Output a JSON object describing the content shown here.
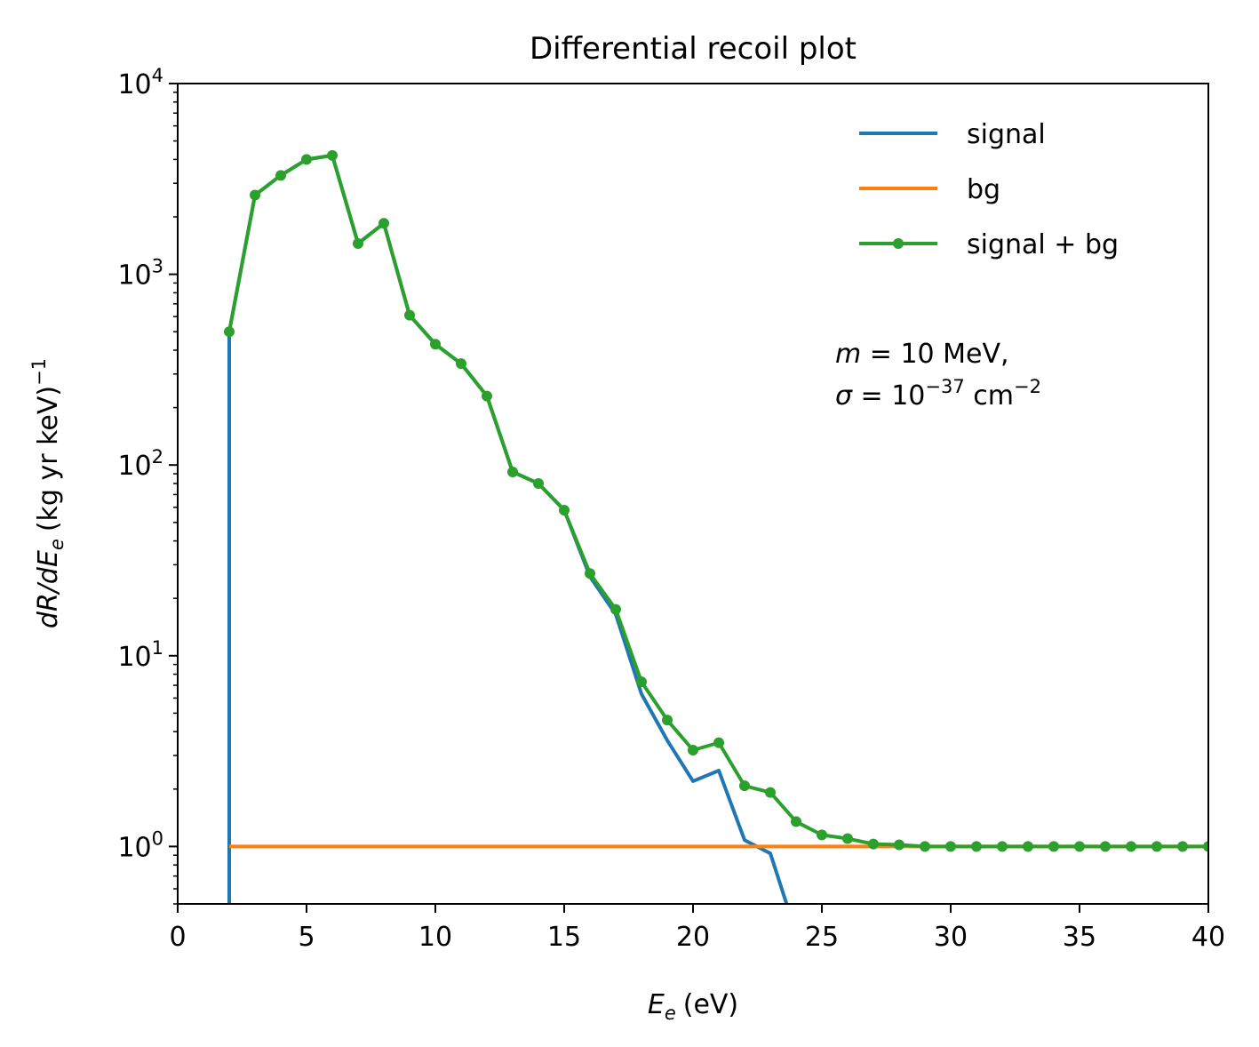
{
  "chart_data": {
    "type": "line",
    "title": "Differential recoil plot",
    "xlabel_var": "E",
    "xlabel_sub": "e",
    "xlabel_unit": "(eV)",
    "ylabel_prefix": "dR/dE",
    "ylabel_sub": "e",
    "ylabel_unit": "(kg yr keV)",
    "ylabel_exp": "−1",
    "xlim": [
      0,
      40
    ],
    "ylim": [
      0.5,
      10000
    ],
    "yscale": "log",
    "xticks": [
      0,
      5,
      10,
      15,
      20,
      25,
      30,
      35,
      40
    ],
    "yticks": [
      {
        "value": 1,
        "base": "10",
        "exp": "0"
      },
      {
        "value": 10,
        "base": "10",
        "exp": "1"
      },
      {
        "value": 100,
        "base": "10",
        "exp": "2"
      },
      {
        "value": 1000,
        "base": "10",
        "exp": "3"
      },
      {
        "value": 10000,
        "base": "10",
        "exp": "4"
      }
    ],
    "legend_position": "top-right",
    "annotation": {
      "line1_var": "m",
      "line1_text": " = 10 MeV,",
      "line2_var": "σ",
      "line2_text": " = 10",
      "line2_exp": "−37",
      "line2_unit": " cm",
      "line2_unit_exp": "−2"
    },
    "series": [
      {
        "name": "signal",
        "color": "#1f77b4",
        "markers": false,
        "x": [
          2,
          2,
          3,
          4,
          5,
          6,
          7,
          8,
          9,
          10,
          11,
          12,
          13,
          14,
          15,
          16,
          17,
          18,
          19,
          20,
          21,
          22,
          23,
          24
        ],
        "y": [
          0.3,
          500,
          2600,
          3300,
          4000,
          4200,
          1450,
          1850,
          610,
          430,
          340,
          230,
          92,
          80,
          58,
          26,
          16.5,
          6.3,
          3.6,
          2.2,
          2.5,
          1.08,
          0.92,
          0.35
        ]
      },
      {
        "name": "bg",
        "color": "#ff7f0e",
        "markers": false,
        "x": [
          2,
          40
        ],
        "y": [
          1,
          1
        ]
      },
      {
        "name": "signal + bg",
        "color": "#2ca02c",
        "markers": true,
        "x": [
          2,
          3,
          4,
          5,
          6,
          7,
          8,
          9,
          10,
          11,
          12,
          13,
          14,
          15,
          16,
          17,
          18,
          19,
          20,
          21,
          22,
          23,
          24,
          25,
          26,
          27,
          28,
          29,
          30,
          31,
          32,
          33,
          34,
          35,
          36,
          37,
          38,
          39,
          40
        ],
        "y": [
          500,
          2600,
          3300,
          4000,
          4200,
          1450,
          1850,
          610,
          430,
          340,
          230,
          92,
          80,
          58,
          27,
          17.5,
          7.3,
          4.6,
          3.2,
          3.5,
          2.08,
          1.92,
          1.35,
          1.15,
          1.1,
          1.03,
          1.02,
          1.0,
          1.0,
          1.0,
          1.0,
          1.0,
          1.0,
          1.0,
          1.0,
          1.0,
          1.0,
          1.0,
          1.0
        ]
      }
    ]
  }
}
